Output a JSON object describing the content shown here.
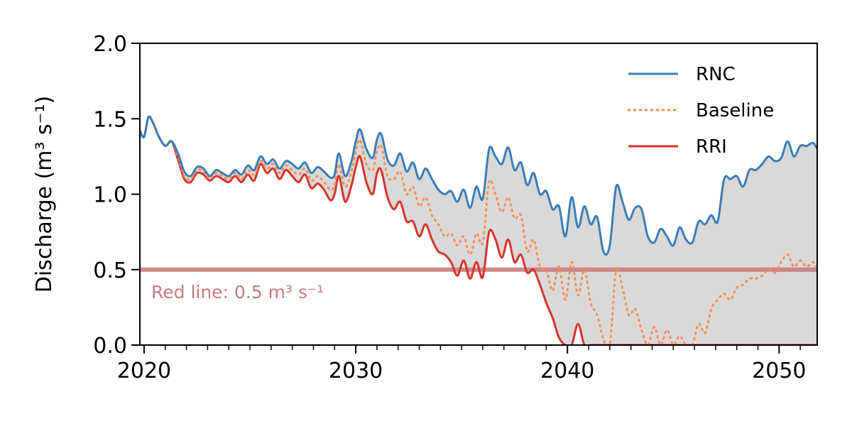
{
  "chart_data": {
    "type": "line",
    "xlabel": "",
    "ylabel": "Discharge (m³ s⁻¹)",
    "xlim": [
      2019.8,
      2051.8
    ],
    "ylim": [
      0,
      2.0
    ],
    "x_ticks": [
      2020,
      2030,
      2040,
      2050
    ],
    "x_tick_labels": [
      "2020",
      "2030",
      "2040",
      "2050"
    ],
    "x_minor_step": 1,
    "y_ticks": [
      0.0,
      0.5,
      1.0,
      1.5,
      2.0
    ],
    "y_tick_labels": [
      "0.0",
      "0.5",
      "1.0",
      "1.5",
      "2.0"
    ],
    "grid": false,
    "legend_position": "top-right",
    "fill_between": {
      "upper": "RNC",
      "lower": "RRI",
      "color": "#d9d9d9"
    },
    "threshold": {
      "value": 0.5,
      "label": "Red line: 0.5 m³ s⁻¹",
      "color": "#c97b7e"
    },
    "series": [
      {
        "name": "RNC",
        "color": "#3a7db7",
        "style": "solid",
        "x": [
          2019.8,
          2020.0,
          2020.2,
          2020.4,
          2020.7,
          2021.0,
          2021.3,
          2021.6,
          2021.9,
          2022.2,
          2022.5,
          2022.8,
          2023.1,
          2023.4,
          2023.7,
          2024.0,
          2024.3,
          2024.6,
          2024.9,
          2025.2,
          2025.5,
          2025.8,
          2026.1,
          2026.4,
          2026.7,
          2027.0,
          2027.3,
          2027.6,
          2027.9,
          2028.2,
          2028.5,
          2028.8,
          2029.0,
          2029.2,
          2029.5,
          2029.8,
          2030.0,
          2030.2,
          2030.5,
          2030.8,
          2031.0,
          2031.2,
          2031.5,
          2031.8,
          2032.1,
          2032.4,
          2032.7,
          2033.0,
          2033.3,
          2033.6,
          2033.9,
          2034.2,
          2034.5,
          2034.8,
          2035.1,
          2035.4,
          2035.7,
          2036.0,
          2036.3,
          2036.6,
          2036.9,
          2037.2,
          2037.5,
          2037.8,
          2038.1,
          2038.4,
          2038.7,
          2039.0,
          2039.3,
          2039.6,
          2039.9,
          2040.2,
          2040.5,
          2040.8,
          2041.1,
          2041.4,
          2041.7,
          2042.0,
          2042.3,
          2042.6,
          2042.9,
          2043.2,
          2043.5,
          2043.8,
          2044.1,
          2044.4,
          2044.7,
          2045.0,
          2045.3,
          2045.6,
          2045.9,
          2046.2,
          2046.5,
          2046.8,
          2047.1,
          2047.4,
          2047.7,
          2048.0,
          2048.3,
          2048.6,
          2048.9,
          2049.2,
          2049.5,
          2049.8,
          2050.1,
          2050.4,
          2050.7,
          2051.0,
          2051.3,
          2051.6,
          2051.8
        ],
        "values": [
          1.42,
          1.38,
          1.51,
          1.48,
          1.38,
          1.32,
          1.35,
          1.27,
          1.15,
          1.12,
          1.18,
          1.17,
          1.12,
          1.16,
          1.14,
          1.12,
          1.16,
          1.13,
          1.19,
          1.16,
          1.25,
          1.2,
          1.23,
          1.17,
          1.22,
          1.2,
          1.17,
          1.21,
          1.14,
          1.18,
          1.15,
          1.11,
          1.13,
          1.27,
          1.12,
          1.22,
          1.35,
          1.43,
          1.3,
          1.24,
          1.36,
          1.4,
          1.23,
          1.19,
          1.27,
          1.15,
          1.21,
          1.1,
          1.17,
          1.1,
          1.03,
          1.0,
          1.02,
          0.95,
          1.03,
          0.91,
          1.05,
          0.97,
          1.3,
          1.25,
          1.2,
          1.31,
          1.16,
          1.21,
          1.06,
          1.14,
          1.0,
          1.02,
          0.9,
          0.92,
          0.72,
          0.98,
          0.78,
          0.92,
          0.8,
          0.85,
          0.62,
          0.66,
          1.05,
          0.95,
          0.83,
          0.91,
          0.9,
          0.72,
          0.68,
          0.77,
          0.72,
          0.66,
          0.78,
          0.7,
          0.68,
          0.82,
          0.8,
          0.86,
          0.82,
          1.1,
          1.1,
          1.12,
          1.05,
          1.16,
          1.16,
          1.2,
          1.25,
          1.22,
          1.24,
          1.35,
          1.25,
          1.32,
          1.32,
          1.34,
          1.3
        ]
      },
      {
        "name": "Baseline",
        "color": "#f4905a",
        "style": "dotted",
        "x": [
          2019.8,
          2020.0,
          2020.2,
          2020.4,
          2020.7,
          2021.0,
          2021.3,
          2021.6,
          2021.9,
          2022.2,
          2022.5,
          2022.8,
          2023.1,
          2023.4,
          2023.7,
          2024.0,
          2024.3,
          2024.6,
          2024.9,
          2025.2,
          2025.5,
          2025.8,
          2026.1,
          2026.4,
          2026.7,
          2027.0,
          2027.3,
          2027.6,
          2027.9,
          2028.2,
          2028.5,
          2028.8,
          2029.0,
          2029.2,
          2029.5,
          2029.8,
          2030.0,
          2030.2,
          2030.5,
          2030.8,
          2031.0,
          2031.2,
          2031.5,
          2031.8,
          2032.1,
          2032.4,
          2032.7,
          2033.0,
          2033.3,
          2033.6,
          2033.9,
          2034.2,
          2034.5,
          2034.8,
          2035.1,
          2035.4,
          2035.7,
          2036.0,
          2036.3,
          2036.6,
          2036.9,
          2037.2,
          2037.5,
          2037.8,
          2038.1,
          2038.4,
          2038.7,
          2039.0,
          2039.3,
          2039.6,
          2039.9,
          2040.2,
          2040.5,
          2040.8,
          2041.1,
          2041.4,
          2041.7,
          2042.0,
          2042.3,
          2042.6,
          2042.9,
          2043.2,
          2043.5,
          2043.8,
          2044.1,
          2044.4,
          2044.7,
          2045.0,
          2045.3,
          2045.6,
          2045.9,
          2046.2,
          2046.5,
          2046.8,
          2047.1,
          2047.4,
          2047.7,
          2048.0,
          2048.3,
          2048.6,
          2048.9,
          2049.2,
          2049.5,
          2049.8,
          2050.1,
          2050.4,
          2050.7,
          2051.0,
          2051.3,
          2051.6,
          2051.8
        ],
        "values": [
          1.42,
          1.38,
          1.51,
          1.48,
          1.38,
          1.32,
          1.35,
          1.25,
          1.12,
          1.1,
          1.16,
          1.15,
          1.1,
          1.14,
          1.12,
          1.1,
          1.14,
          1.1,
          1.16,
          1.13,
          1.22,
          1.17,
          1.2,
          1.14,
          1.19,
          1.16,
          1.13,
          1.17,
          1.09,
          1.12,
          1.08,
          1.03,
          1.06,
          1.2,
          1.05,
          1.15,
          1.28,
          1.36,
          1.2,
          1.16,
          1.28,
          1.32,
          1.12,
          1.1,
          1.15,
          1.0,
          1.05,
          0.92,
          0.98,
          0.86,
          0.8,
          0.72,
          0.74,
          0.66,
          0.72,
          0.6,
          0.74,
          0.68,
          1.08,
          1.0,
          0.88,
          0.98,
          0.84,
          0.86,
          0.62,
          0.7,
          0.52,
          0.5,
          0.36,
          0.52,
          0.3,
          0.55,
          0.33,
          0.5,
          0.28,
          0.2,
          0.04,
          0.0,
          0.5,
          0.38,
          0.2,
          0.24,
          0.1,
          0.0,
          0.12,
          0.0,
          0.1,
          0.0,
          0.06,
          0.0,
          0.0,
          0.14,
          0.08,
          0.24,
          0.3,
          0.34,
          0.3,
          0.38,
          0.4,
          0.44,
          0.44,
          0.46,
          0.5,
          0.48,
          0.55,
          0.6,
          0.52,
          0.56,
          0.52,
          0.55,
          0.5
        ]
      },
      {
        "name": "RRI",
        "color": "#d7332a",
        "style": "solid",
        "x": [
          2019.8,
          2020.0,
          2020.2,
          2020.4,
          2020.7,
          2021.0,
          2021.3,
          2021.6,
          2021.9,
          2022.2,
          2022.5,
          2022.8,
          2023.1,
          2023.4,
          2023.7,
          2024.0,
          2024.3,
          2024.6,
          2024.9,
          2025.2,
          2025.5,
          2025.8,
          2026.1,
          2026.4,
          2026.7,
          2027.0,
          2027.3,
          2027.6,
          2027.9,
          2028.2,
          2028.5,
          2028.8,
          2029.0,
          2029.2,
          2029.5,
          2029.8,
          2030.0,
          2030.2,
          2030.5,
          2030.8,
          2031.0,
          2031.2,
          2031.5,
          2031.8,
          2032.1,
          2032.4,
          2032.7,
          2033.0,
          2033.3,
          2033.6,
          2033.9,
          2034.2,
          2034.5,
          2034.8,
          2035.1,
          2035.4,
          2035.7,
          2036.0,
          2036.3,
          2036.6,
          2036.9,
          2037.2,
          2037.5,
          2037.8,
          2038.1,
          2038.4,
          2038.7,
          2039.0,
          2039.3,
          2039.6,
          2039.9,
          2040.2,
          2040.5,
          2040.8,
          2041.1,
          2041.4,
          2041.7,
          2042.0,
          2042.3,
          2042.6,
          2042.9,
          2043.2,
          2043.5,
          2043.8,
          2044.1,
          2044.4,
          2044.7,
          2045.0,
          2045.3,
          2045.6,
          2045.9,
          2046.2,
          2046.5,
          2046.8,
          2047.1,
          2047.4,
          2047.7,
          2048.0,
          2048.3,
          2048.6,
          2048.9,
          2049.2,
          2049.5,
          2049.8,
          2050.1,
          2050.4,
          2050.7,
          2051.0,
          2051.3,
          2051.6,
          2051.8
        ],
        "values": [
          1.42,
          1.38,
          1.51,
          1.48,
          1.38,
          1.32,
          1.35,
          1.23,
          1.1,
          1.08,
          1.14,
          1.13,
          1.09,
          1.12,
          1.1,
          1.08,
          1.12,
          1.08,
          1.13,
          1.09,
          1.2,
          1.14,
          1.17,
          1.1,
          1.16,
          1.12,
          1.08,
          1.13,
          1.04,
          1.07,
          1.03,
          0.96,
          1.0,
          1.12,
          0.95,
          1.06,
          1.18,
          1.25,
          1.08,
          1.0,
          1.14,
          1.16,
          0.98,
          0.9,
          0.95,
          0.82,
          0.82,
          0.72,
          0.8,
          0.7,
          0.62,
          0.6,
          0.55,
          0.46,
          0.56,
          0.44,
          0.55,
          0.45,
          0.75,
          0.7,
          0.58,
          0.7,
          0.55,
          0.6,
          0.48,
          0.5,
          0.4,
          0.28,
          0.18,
          0.05,
          0.0,
          0.0,
          0.14,
          0.0,
          0.0,
          0.0,
          0.0,
          0.0,
          0.0,
          0.0,
          0.0,
          0.0,
          0.0,
          0.0,
          0.0,
          0.0,
          0.0,
          0.0,
          0.0,
          0.0,
          0.0,
          0.0,
          0.0,
          0.0,
          0.0,
          0.0,
          0.0,
          0.0,
          0.0,
          0.0,
          0.0,
          0.0,
          0.0,
          0.0,
          0.0,
          0.0,
          0.0,
          0.0,
          0.0,
          0.0,
          0.0
        ]
      }
    ]
  }
}
